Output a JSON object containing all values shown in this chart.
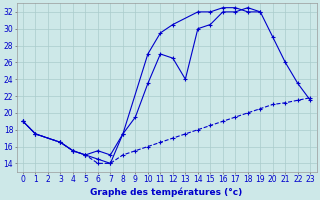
{
  "title": "Graphe des températures (°c)",
  "background_color": "#cde8e8",
  "line_color": "#0000cc",
  "grid_color": "#aacccc",
  "ylim": [
    13,
    33
  ],
  "yticks": [
    14,
    16,
    18,
    20,
    22,
    24,
    26,
    28,
    30,
    32
  ],
  "xticks": [
    0,
    1,
    2,
    3,
    4,
    5,
    6,
    7,
    8,
    9,
    10,
    11,
    12,
    13,
    14,
    15,
    16,
    17,
    18,
    19,
    20,
    21,
    22,
    23
  ],
  "tick_fontsize": 5.5,
  "xlabel_fontsize": 6.5,
  "line1_x": [
    0,
    1,
    3,
    4,
    5,
    6,
    7,
    8,
    9,
    10,
    11,
    12,
    13,
    14,
    15,
    16,
    17,
    18,
    19,
    20,
    21,
    22,
    23
  ],
  "line1_y": [
    19,
    17.5,
    16.5,
    15.5,
    15,
    15.5,
    15,
    17.5,
    19.5,
    23.5,
    27,
    26.5,
    24,
    30,
    30.5,
    32,
    32,
    32.5,
    32,
    29,
    26,
    23.5,
    21.5
  ],
  "line2_x": [
    0,
    1,
    3,
    4,
    5,
    6,
    7,
    8,
    10,
    11,
    12,
    14,
    15,
    16,
    17,
    18,
    19
  ],
  "line2_y": [
    19,
    17.5,
    16.5,
    15.5,
    15,
    14.5,
    14,
    17.5,
    27,
    29.5,
    30.5,
    32,
    32,
    32.5,
    32.5,
    32,
    32
  ],
  "line3_x": [
    0,
    1,
    3,
    4,
    5,
    6,
    7,
    8,
    9,
    10,
    11,
    12,
    13,
    14,
    15,
    16,
    17,
    18,
    19,
    20,
    21,
    22,
    23
  ],
  "line3_y": [
    19,
    17.5,
    16.5,
    15.5,
    15,
    14,
    14,
    15,
    15.5,
    16,
    16.5,
    17,
    17.5,
    18,
    18.5,
    19,
    19.5,
    20,
    20.5,
    21,
    21.2,
    21.5,
    21.8
  ]
}
